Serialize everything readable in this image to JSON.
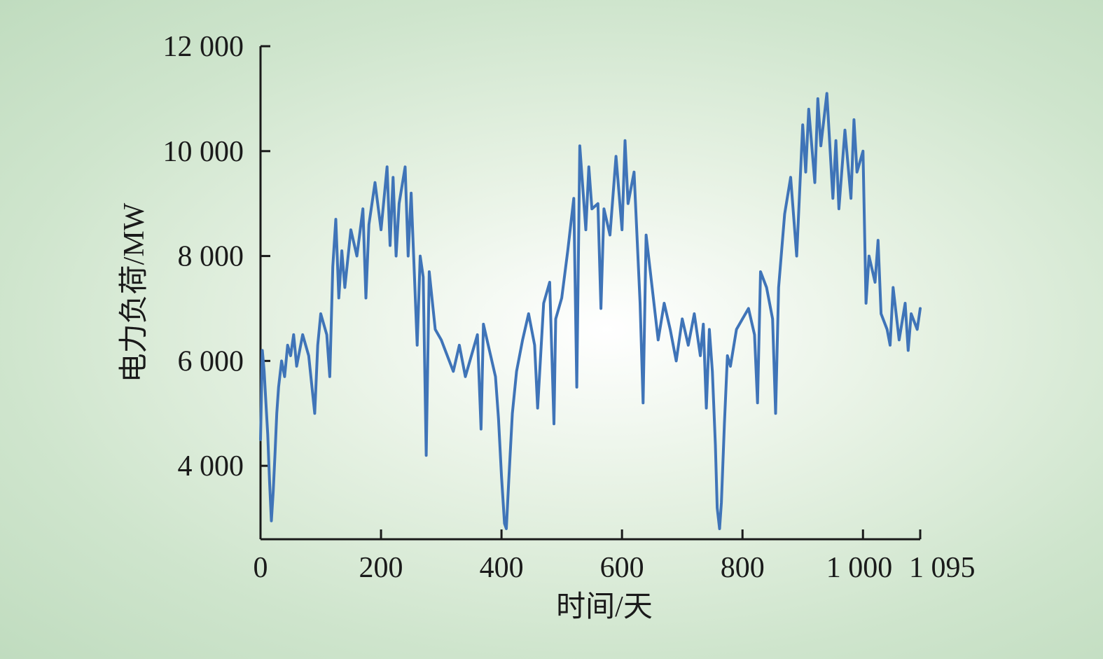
{
  "chart_data": {
    "type": "line",
    "xlabel": "时间/天",
    "ylabel": "电力负荷/MW",
    "xlim": [
      0,
      1095
    ],
    "ylim": [
      2600,
      12000
    ],
    "x_ticks": [
      0,
      200,
      400,
      600,
      800,
      1000,
      1095
    ],
    "x_tick_labels": [
      "0",
      "200",
      "400",
      "600",
      "800",
      "1 000",
      "1 095"
    ],
    "y_ticks": [
      4000,
      6000,
      8000,
      10000,
      12000
    ],
    "y_tick_labels": [
      "4 000",
      "6 000",
      "8 000",
      "10 000",
      "12 000"
    ],
    "grid": false,
    "line_color": "#3f74b8",
    "series": [
      {
        "x": [
          0,
          3,
          6,
          9,
          12,
          15,
          18,
          21,
          24,
          27,
          30,
          35,
          40,
          45,
          50,
          55,
          60,
          70,
          80,
          90,
          95,
          100,
          110,
          115,
          120,
          125,
          130,
          135,
          140,
          150,
          160,
          170,
          175,
          180,
          190,
          200,
          210,
          215,
          220,
          225,
          230,
          240,
          245,
          250,
          260,
          265,
          270,
          275,
          280,
          290,
          300,
          310,
          320,
          330,
          340,
          350,
          360,
          366,
          370,
          380,
          390,
          395,
          400,
          405,
          408,
          412,
          418,
          425,
          435,
          445,
          455,
          460,
          470,
          480,
          487,
          490,
          500,
          510,
          520,
          525,
          530,
          535,
          540,
          545,
          550,
          560,
          565,
          570,
          580,
          590,
          600,
          605,
          610,
          620,
          630,
          635,
          640,
          650,
          660,
          670,
          680,
          690,
          700,
          710,
          720,
          730,
          735,
          740,
          745,
          750,
          755,
          758,
          762,
          765,
          770,
          775,
          780,
          790,
          800,
          810,
          820,
          825,
          830,
          840,
          850,
          855,
          860,
          870,
          880,
          890,
          900,
          905,
          910,
          920,
          925,
          930,
          940,
          950,
          955,
          960,
          970,
          980,
          985,
          990,
          1000,
          1005,
          1010,
          1020,
          1025,
          1030,
          1040,
          1045,
          1050,
          1060,
          1070,
          1075,
          1080,
          1090,
          1095
        ],
        "y": [
          4500,
          6200,
          5800,
          5200,
          4600,
          3700,
          2950,
          3500,
          4200,
          5000,
          5500,
          6000,
          5700,
          6300,
          6100,
          6500,
          5900,
          6500,
          6100,
          5000,
          6300,
          6900,
          6500,
          5700,
          7800,
          8700,
          7200,
          8100,
          7400,
          8500,
          8000,
          8900,
          7200,
          8600,
          9400,
          8500,
          9700,
          8200,
          9500,
          8000,
          9000,
          9700,
          8000,
          9200,
          6300,
          8000,
          7600,
          4200,
          7700,
          6600,
          6400,
          6100,
          5800,
          6300,
          5700,
          6100,
          6500,
          4700,
          6700,
          6200,
          5700,
          4900,
          3800,
          2900,
          2800,
          3700,
          5000,
          5800,
          6400,
          6900,
          6300,
          5100,
          7100,
          7500,
          4800,
          6800,
          7200,
          8100,
          9100,
          5500,
          10100,
          9300,
          8500,
          9700,
          8900,
          9000,
          7000,
          8900,
          8400,
          9900,
          8500,
          10200,
          9000,
          9600,
          7100,
          5200,
          8400,
          7400,
          6400,
          7100,
          6600,
          6000,
          6800,
          6300,
          6900,
          6100,
          6700,
          5100,
          6600,
          5800,
          4400,
          3200,
          2800,
          3300,
          4800,
          6100,
          5900,
          6600,
          6800,
          7000,
          6500,
          5200,
          7700,
          7400,
          6800,
          5000,
          7400,
          8800,
          9500,
          8000,
          10500,
          9600,
          10800,
          9400,
          11000,
          10100,
          11100,
          9100,
          10200,
          8900,
          10400,
          9100,
          10600,
          9600,
          10000,
          7100,
          8000,
          7500,
          8300,
          6900,
          6600,
          6300,
          7400,
          6400,
          7100,
          6200,
          6900,
          6600,
          7000
        ]
      }
    ]
  }
}
